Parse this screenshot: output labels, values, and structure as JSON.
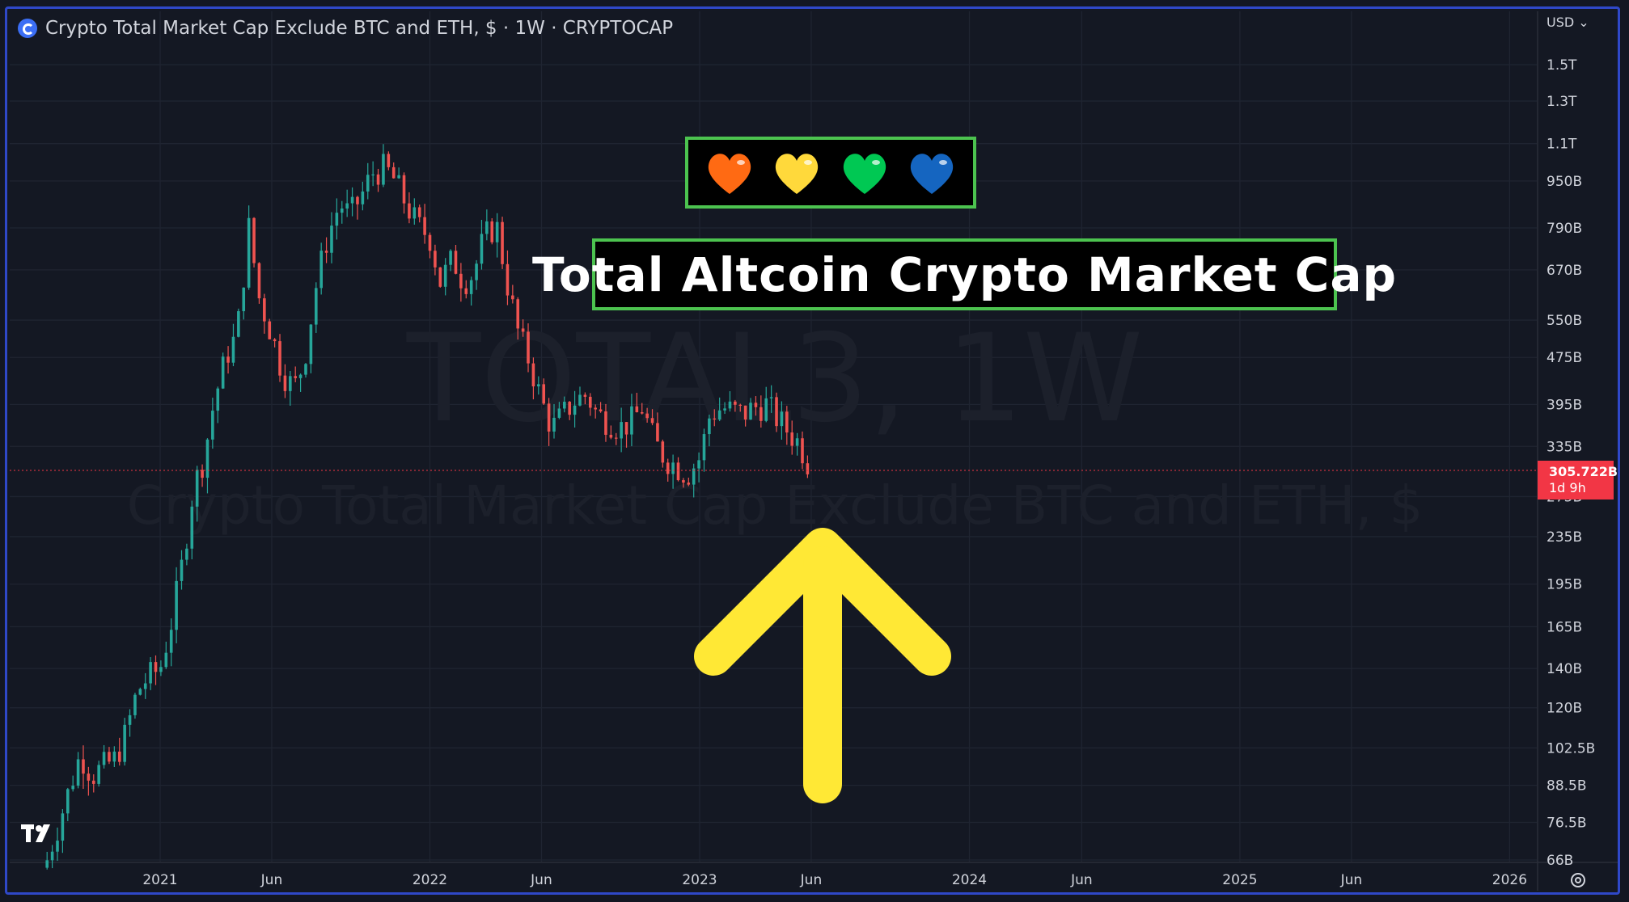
{
  "header": {
    "title": "Crypto Total Market Cap Exclude BTC and ETH, $ · 1W · CRYPTOCAP",
    "currency_button": "USD ⌄",
    "logo_icon": "cryptocap-logo-icon"
  },
  "overlays": {
    "banner_title": "Total Altcoin Crypto Market Cap",
    "hearts": [
      {
        "name": "orange-heart-icon",
        "color": "#ff6a13"
      },
      {
        "name": "yellow-heart-icon",
        "color": "#ffd93b"
      },
      {
        "name": "green-heart-icon",
        "color": "#00c853"
      },
      {
        "name": "blue-heart-icon",
        "color": "#1565c0"
      }
    ],
    "arrow_color": "#ffe835",
    "watermark_symbol": "TOTAL3, 1W",
    "watermark_name": "Crypto Total Market Cap Exclude BTC and ETH, $"
  },
  "last_price": {
    "value": "305.722B",
    "countdown": "1d 9h",
    "color": "#f23645"
  },
  "colors": {
    "up": "#26a69a",
    "down": "#ef5350",
    "background": "#131722",
    "grid": "#1f2431",
    "frame": "#2f48c8"
  },
  "chart_data": {
    "type": "candlestick",
    "title": "Crypto Total Market Cap Exclude BTC and ETH, $ · 1W · CRYPTOCAP",
    "y_scale": "log",
    "y_unit": "USD",
    "y_ticks": [
      "1.5T",
      "1.3T",
      "1.1T",
      "950B",
      "790B",
      "670B",
      "550B",
      "475B",
      "395B",
      "335B",
      "275B",
      "235B",
      "195B",
      "165B",
      "140B",
      "120B",
      "102.5B",
      "88.5B",
      "76.5B",
      "66B"
    ],
    "y_tick_values": [
      1500,
      1300,
      1100,
      950,
      790,
      670,
      550,
      475,
      395,
      335,
      275,
      235,
      195,
      165,
      140,
      120,
      102.5,
      88.5,
      76.5,
      66
    ],
    "x_ticks": [
      "2021",
      "Jun",
      "2022",
      "Jun",
      "2023",
      "Jun",
      "2024",
      "Jun",
      "2025",
      "Jun",
      "2026"
    ],
    "x_tick_dates": [
      "2021-01-01",
      "2021-06-01",
      "2022-01-01",
      "2022-06-01",
      "2023-01-01",
      "2023-06-01",
      "2024-01-01",
      "2024-06-01",
      "2025-01-01",
      "2025-06-01",
      "2026-01-01"
    ],
    "series_trend": {
      "name": "",
      "dates": [
        "2020-08-01",
        "2020-08-15",
        "2020-09-01",
        "2020-09-15",
        "2020-10-01",
        "2020-10-15",
        "2020-11-01",
        "2020-11-15",
        "2020-12-01",
        "2020-12-15",
        "2021-01-01",
        "2021-01-15",
        "2021-02-01",
        "2021-02-15",
        "2021-03-01",
        "2021-03-15",
        "2021-04-01",
        "2021-04-15",
        "2021-05-01",
        "2021-05-15",
        "2021-06-01",
        "2021-06-15",
        "2021-07-01",
        "2021-07-15",
        "2021-08-01",
        "2021-08-15",
        "2021-09-01",
        "2021-09-15",
        "2021-10-01",
        "2021-10-15",
        "2021-11-01",
        "2021-11-15",
        "2021-12-01",
        "2021-12-15",
        "2022-01-01",
        "2022-01-15",
        "2022-02-01",
        "2022-02-15",
        "2022-03-01",
        "2022-03-15",
        "2022-04-01",
        "2022-04-15",
        "2022-05-01",
        "2022-05-15",
        "2022-06-01",
        "2022-06-15",
        "2022-07-01",
        "2022-07-15",
        "2022-08-01",
        "2022-08-15",
        "2022-09-01",
        "2022-09-15",
        "2022-10-01",
        "2022-10-15",
        "2022-11-01",
        "2022-11-15",
        "2022-12-01",
        "2022-12-15",
        "2023-01-01",
        "2023-01-15",
        "2023-02-01",
        "2023-02-15",
        "2023-03-01",
        "2023-03-15",
        "2023-04-01",
        "2023-04-15",
        "2023-05-01",
        "2023-05-15",
        "2023-06-01"
      ],
      "close_billions": [
        66,
        75,
        88,
        100,
        92,
        95,
        98,
        108,
        128,
        135,
        140,
        165,
        215,
        285,
        320,
        400,
        480,
        520,
        790,
        600,
        520,
        450,
        420,
        470,
        640,
        760,
        870,
        830,
        900,
        980,
        1000,
        950,
        860,
        800,
        760,
        640,
        700,
        640,
        660,
        760,
        800,
        640,
        520,
        470,
        400,
        360,
        380,
        400,
        410,
        380,
        370,
        360,
        370,
        390,
        340,
        320,
        310,
        300,
        320,
        380,
        390,
        385,
        380,
        390,
        395,
        375,
        355,
        340,
        306
      ]
    }
  }
}
